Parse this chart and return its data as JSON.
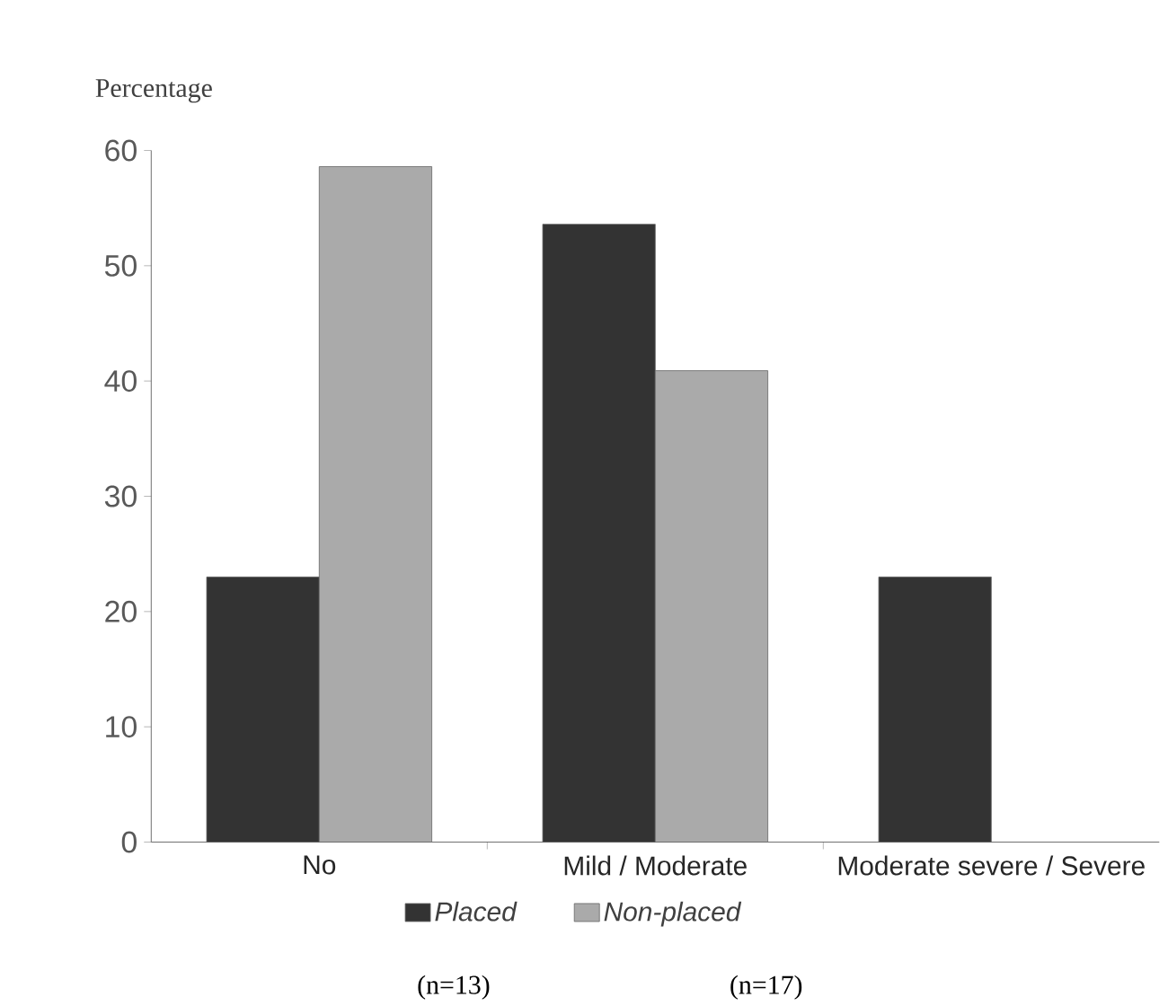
{
  "chart_data": {
    "type": "bar",
    "ylabel": "Percentage",
    "categories": [
      "No",
      "Mild / Moderate",
      "Moderate severe / Severe"
    ],
    "series": [
      {
        "name": "Placed",
        "color": "#333333",
        "values": [
          23,
          53.6,
          23
        ]
      },
      {
        "name": "Non-placed",
        "color": "#aaaaaa",
        "values": [
          58.6,
          40.9,
          null
        ]
      }
    ],
    "ylim": [
      0,
      60
    ],
    "yticks": [
      0,
      10,
      20,
      30,
      40,
      50,
      60
    ],
    "grid": false,
    "legend": "bottom",
    "annotations": [
      "(n=13)",
      "(n=17)"
    ]
  }
}
